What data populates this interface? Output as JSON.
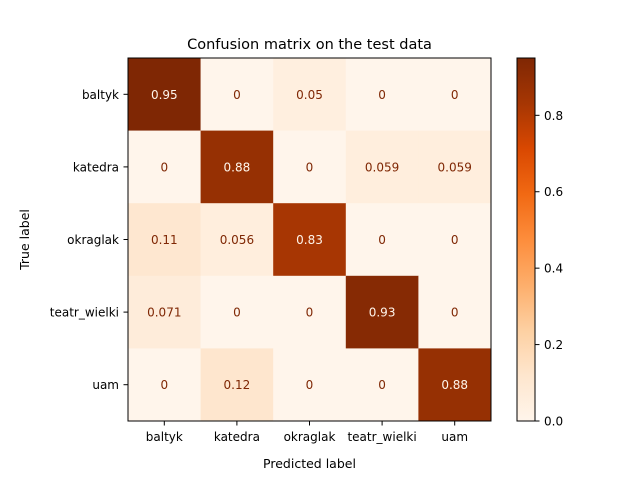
{
  "chart_data": {
    "type": "heatmap",
    "title": "Confusion matrix on the test data",
    "xlabel": "Predicted label",
    "ylabel": "True label",
    "x_categories": [
      "baltyk",
      "katedra",
      "okraglak",
      "teatr_wielki",
      "uam"
    ],
    "y_categories": [
      "baltyk",
      "katedra",
      "okraglak",
      "teatr_wielki",
      "uam"
    ],
    "values": [
      [
        0.95,
        0,
        0.05,
        0,
        0
      ],
      [
        0,
        0.88,
        0,
        0.059,
        0.059
      ],
      [
        0.11,
        0.056,
        0.83,
        0,
        0
      ],
      [
        0.071,
        0,
        0,
        0.93,
        0
      ],
      [
        0,
        0.12,
        0,
        0,
        0.88
      ]
    ],
    "cell_labels": [
      [
        "0.95",
        "0",
        "0.05",
        "0",
        "0"
      ],
      [
        "0",
        "0.88",
        "0",
        "0.059",
        "0.059"
      ],
      [
        "0.11",
        "0.056",
        "0.83",
        "0",
        "0"
      ],
      [
        "0.071",
        "0",
        "0",
        "0.93",
        "0"
      ],
      [
        "0",
        "0.12",
        "0",
        "0",
        "0.88"
      ]
    ],
    "colormap": "Oranges",
    "color_range": [
      0,
      0.95
    ],
    "colorbar_ticks": [
      0.0,
      0.2,
      0.4,
      0.6,
      0.8
    ],
    "colorbar_tick_labels": [
      "0.0",
      "0.2",
      "0.4",
      "0.6",
      "0.8"
    ],
    "colorbar_placement": "right",
    "grid": false
  }
}
